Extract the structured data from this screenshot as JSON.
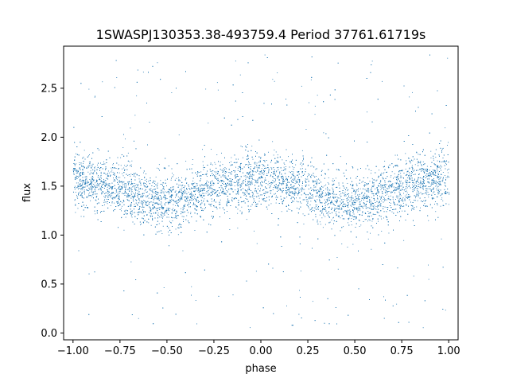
{
  "chart_data": {
    "type": "scatter",
    "title": "1SWASPJ130353.38-493759.4 Period 37761.61719s",
    "xlabel": "phase",
    "ylabel": "flux",
    "xlim": [
      -1.05,
      1.05
    ],
    "ylim": [
      -0.07,
      2.93
    ],
    "x_ticks": [
      -1.0,
      -0.75,
      -0.5,
      -0.25,
      0.0,
      0.25,
      0.5,
      0.75,
      1.0
    ],
    "x_tick_labels": [
      "−1.00",
      "−0.75",
      "−0.50",
      "−0.25",
      "0.00",
      "0.25",
      "0.50",
      "0.75",
      "1.00"
    ],
    "y_ticks": [
      0.0,
      0.5,
      1.0,
      1.5,
      2.0,
      2.5
    ],
    "y_tick_labels": [
      "0.0",
      "0.5",
      "1.0",
      "1.5",
      "2.0",
      "2.5"
    ],
    "grid": false,
    "marker_color": "#1f77b4",
    "light_curve": {
      "phase": [
        -1.0,
        -0.9,
        -0.8,
        -0.7,
        -0.6,
        -0.5,
        -0.4,
        -0.3,
        -0.2,
        -0.1,
        0.0,
        0.1,
        0.2,
        0.3,
        0.4,
        0.5,
        0.6,
        0.7,
        0.8,
        0.9,
        1.0
      ],
      "mean_flux": [
        1.56,
        1.54,
        1.52,
        1.44,
        1.36,
        1.32,
        1.38,
        1.46,
        1.52,
        1.56,
        1.57,
        1.54,
        1.5,
        1.44,
        1.36,
        1.32,
        1.38,
        1.46,
        1.52,
        1.55,
        1.56
      ],
      "scatter": 0.14,
      "outlier_range": [
        0.05,
        2.85
      ]
    }
  }
}
